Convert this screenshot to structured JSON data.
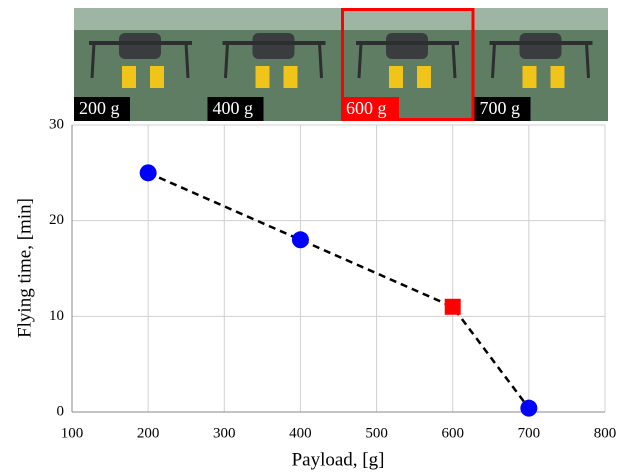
{
  "chart_data": {
    "type": "line",
    "photo_labels": [
      "200 g",
      "400 g",
      "600 g",
      "700 g"
    ],
    "highlight_photo": 2,
    "x": [
      200,
      400,
      600,
      700
    ],
    "values": [
      25,
      18,
      11,
      0.4
    ],
    "marker_colors": [
      "#0000ff",
      "#0000ff",
      "#ff0000",
      "#0000ff"
    ],
    "markers": [
      "circle",
      "circle",
      "square",
      "circle"
    ],
    "line_color": "#000000",
    "line_dashed": true,
    "xlabel": "Payload, [g]",
    "ylabel": "Flying time, [min]",
    "xlim": [
      100,
      800
    ],
    "xticks": [
      100,
      200,
      300,
      400,
      500,
      600,
      700,
      800
    ],
    "ylim": [
      0,
      30
    ],
    "yticks": [
      0,
      10,
      20,
      30
    ],
    "grid": true
  }
}
